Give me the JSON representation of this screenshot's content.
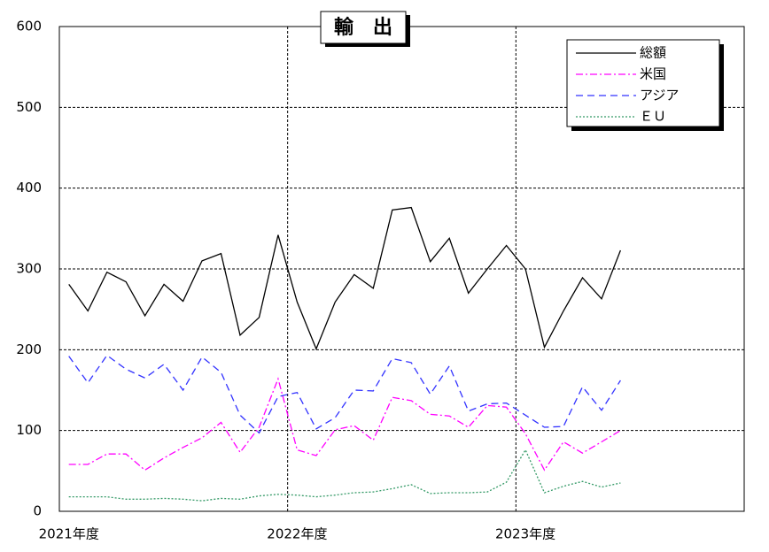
{
  "chart_data": {
    "type": "line",
    "title": "輸　出",
    "categories": [
      "2021年度",
      null,
      null,
      null,
      null,
      null,
      null,
      null,
      null,
      null,
      null,
      null,
      "2022年度",
      null,
      null,
      null,
      null,
      null,
      null,
      null,
      null,
      null,
      null,
      null,
      "2023年度",
      null,
      null,
      null,
      null,
      null,
      null,
      null,
      null,
      null,
      null,
      null
    ],
    "series": [
      {
        "name": "総額",
        "color": "#000000",
        "dash": "none",
        "values": [
          281,
          248,
          296,
          284,
          242,
          281,
          260,
          310,
          319,
          218,
          240,
          342,
          259,
          201,
          259,
          293,
          276,
          373,
          376,
          309,
          338,
          270,
          300,
          329,
          300,
          203,
          248,
          289,
          263,
          323,
          null,
          null,
          null,
          null,
          null,
          null
        ]
      },
      {
        "name": "米国",
        "color": "#ff00ff",
        "dash": "8,3,2,3",
        "values": [
          58,
          58,
          71,
          71,
          51,
          66,
          79,
          91,
          110,
          73,
          104,
          164,
          76,
          69,
          101,
          106,
          88,
          141,
          137,
          120,
          118,
          104,
          131,
          129,
          96,
          51,
          86,
          72,
          86,
          100,
          null,
          null,
          null,
          null,
          null,
          null
        ]
      },
      {
        "name": "アジア",
        "color": "#3333ff",
        "dash": "8,5",
        "values": [
          192,
          159,
          193,
          176,
          165,
          182,
          150,
          191,
          172,
          119,
          97,
          142,
          147,
          102,
          116,
          150,
          149,
          189,
          184,
          145,
          180,
          124,
          133,
          134,
          119,
          104,
          105,
          154,
          125,
          162,
          null,
          null,
          null,
          null,
          null,
          null
        ]
      },
      {
        "name": "ＥＵ",
        "color": "#339966",
        "dash": "2,2",
        "values": [
          18,
          18,
          18,
          15,
          15,
          16,
          15,
          13,
          16,
          15,
          19,
          21,
          20,
          18,
          20,
          23,
          24,
          28,
          33,
          22,
          23,
          23,
          24,
          36,
          76,
          23,
          31,
          37,
          30,
          35,
          null,
          null,
          null,
          null,
          null,
          null
        ]
      }
    ],
    "ylim": [
      0,
      600
    ],
    "yticks": [
      0,
      100,
      200,
      300,
      400,
      500,
      600
    ],
    "grid": true,
    "legend": "upper right"
  }
}
